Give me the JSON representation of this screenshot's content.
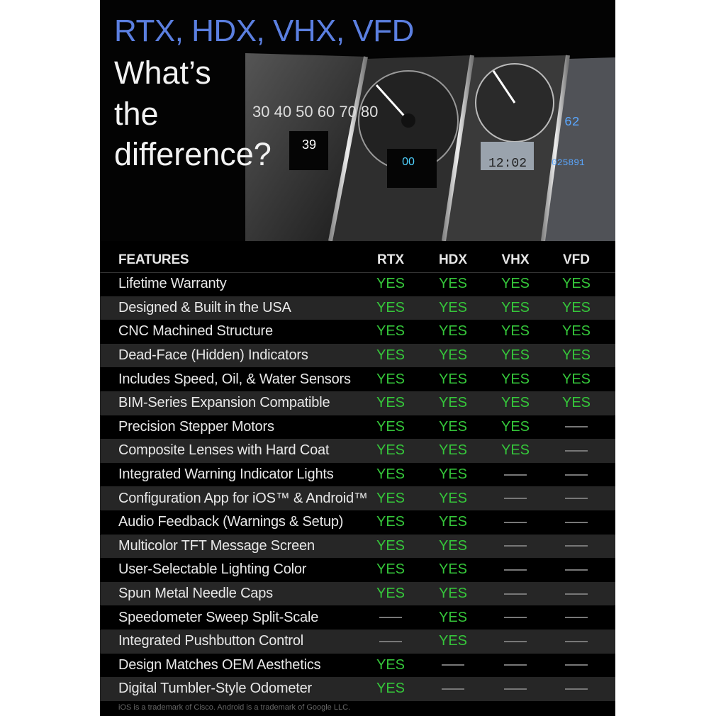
{
  "hero": {
    "title_models": "RTX, HDX, VHX, VFD",
    "title_lines": [
      "What’s",
      "the",
      "difference?"
    ],
    "title_color": "#5b7fe0"
  },
  "table": {
    "header": {
      "features": "FEATURES",
      "columns": [
        "RTX",
        "HDX",
        "VHX",
        "VFD"
      ]
    },
    "yes_label": "YES",
    "yes_color": "#35c63a",
    "rows": [
      {
        "feature": "Lifetime Warranty",
        "values": [
          true,
          true,
          true,
          true
        ]
      },
      {
        "feature": "Designed & Built in the USA",
        "values": [
          true,
          true,
          true,
          true
        ]
      },
      {
        "feature": "CNC Machined Structure",
        "values": [
          true,
          true,
          true,
          true
        ]
      },
      {
        "feature": "Dead-Face (Hidden) Indicators",
        "values": [
          true,
          true,
          true,
          true
        ]
      },
      {
        "feature": "Includes Speed, Oil, & Water Sensors",
        "values": [
          true,
          true,
          true,
          true
        ]
      },
      {
        "feature": "BIM-Series Expansion Compatible",
        "values": [
          true,
          true,
          true,
          true
        ]
      },
      {
        "feature": "Precision Stepper Motors",
        "values": [
          true,
          true,
          true,
          false
        ]
      },
      {
        "feature": "Composite Lenses with Hard Coat",
        "values": [
          true,
          true,
          true,
          false
        ]
      },
      {
        "feature": "Integrated Warning Indicator Lights",
        "values": [
          true,
          true,
          false,
          false
        ]
      },
      {
        "feature": "Configuration App for iOS™ & Android™",
        "values": [
          true,
          true,
          false,
          false
        ]
      },
      {
        "feature": "Audio Feedback (Warnings & Setup)",
        "values": [
          true,
          true,
          false,
          false
        ]
      },
      {
        "feature": "Multicolor TFT Message Screen",
        "values": [
          true,
          true,
          false,
          false
        ]
      },
      {
        "feature": "User-Selectable Lighting Color",
        "values": [
          true,
          true,
          false,
          false
        ]
      },
      {
        "feature": "Spun Metal Needle Caps",
        "values": [
          true,
          true,
          false,
          false
        ]
      },
      {
        "feature": "Speedometer Sweep Split-Scale",
        "values": [
          false,
          true,
          false,
          false
        ]
      },
      {
        "feature": "Integrated Pushbutton Control",
        "values": [
          false,
          true,
          false,
          false
        ]
      },
      {
        "feature": "Design Matches OEM Aesthetics",
        "values": [
          true,
          false,
          false,
          false
        ]
      },
      {
        "feature": "Digital Tumbler-Style Odometer",
        "values": [
          true,
          false,
          false,
          false
        ]
      }
    ]
  },
  "footnote": "iOS is a trademark of Cisco. Android is a trademark of Google LLC."
}
